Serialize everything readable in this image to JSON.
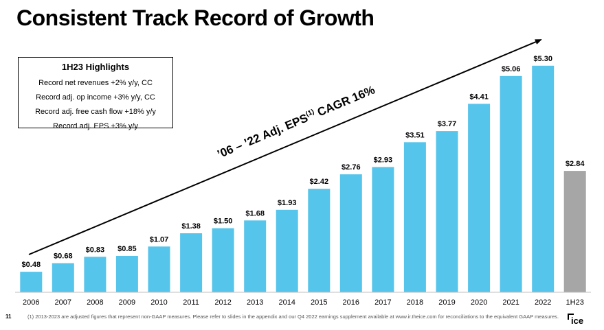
{
  "title": "Consistent Track Record of Growth",
  "highlights": {
    "title": "1H23 Highlights",
    "items": [
      "Record net revenues +2% y/y, CC",
      "Record adj. op income +3% y/y, CC",
      "Record adj. free cash flow +18% y/y",
      "Record adj. EPS +3% y/y"
    ]
  },
  "chart_data": {
    "type": "bar",
    "categories": [
      "2006",
      "2007",
      "2008",
      "2009",
      "2010",
      "2011",
      "2012",
      "2013",
      "2014",
      "2015",
      "2016",
      "2017",
      "2018",
      "2019",
      "2020",
      "2021",
      "2022",
      "1H23"
    ],
    "values": [
      0.48,
      0.68,
      0.83,
      0.85,
      1.07,
      1.38,
      1.5,
      1.68,
      1.93,
      2.42,
      2.76,
      2.93,
      3.51,
      3.77,
      4.41,
      5.06,
      5.3,
      2.84
    ],
    "data_labels": [
      "$0.48",
      "$0.68",
      "$0.83",
      "$0.85",
      "$1.07",
      "$1.38",
      "$1.50",
      "$1.68",
      "$1.93",
      "$2.42",
      "$2.76",
      "$2.93",
      "$3.51",
      "$3.77",
      "$4.41",
      "$5.06",
      "$5.30",
      "$2.84"
    ],
    "ylim": [
      0,
      5.5
    ],
    "grid": false,
    "colors": {
      "primary": "#56c5eb",
      "highlight": "#a6a6a6"
    },
    "highlight_category": "1H23",
    "annotation": {
      "prefix": "’06 – ’22 Adj. EPS",
      "superscript": "(1)",
      "suffix": " CAGR 16%"
    }
  },
  "footer": {
    "page_number": "11",
    "footnote": "(1) 2013-2023 are adjusted figures that represent non-GAAP measures. Please refer to slides in the appendix and our Q4 2022 earnings supplement available at www.ir.theice.com for reconciliations to the equivalent GAAP measures.",
    "logo": "ICE"
  }
}
